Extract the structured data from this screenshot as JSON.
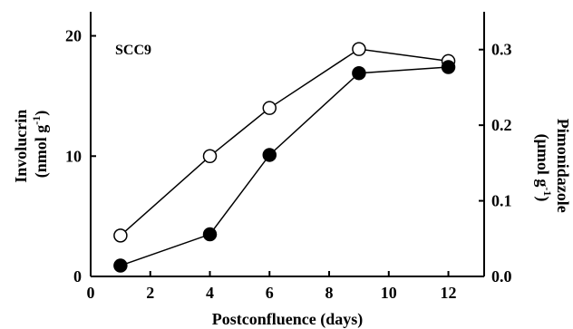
{
  "chart_data": {
    "type": "line",
    "annotation": "SCC9",
    "xlabel": "Postconfluence (days)",
    "ylabel_left": [
      "Involucrin",
      "(nmol g",
      "-1",
      ")"
    ],
    "ylabel_right": [
      "Pimonidazole",
      "(μmol g",
      "-1",
      ")"
    ],
    "xlim": [
      0,
      13.2
    ],
    "ylim_left": [
      0,
      22
    ],
    "ylim_right": [
      0,
      0.35
    ],
    "x_ticks": [
      0,
      2,
      4,
      6,
      8,
      10,
      12
    ],
    "x_tick_labels": [
      "0",
      "2",
      "4",
      "6",
      "8",
      "10",
      "12"
    ],
    "y_left_ticks": [
      0,
      10,
      20
    ],
    "y_left_tick_labels": [
      "0",
      "10",
      "20"
    ],
    "y_right_ticks": [
      0.0,
      0.1,
      0.2,
      0.3
    ],
    "y_right_tick_labels": [
      "0.0",
      "0.1",
      "0.2",
      "0.3"
    ],
    "series": [
      {
        "marker": "open-circle",
        "axis": "left",
        "x": [
          1,
          4,
          6,
          9,
          12
        ],
        "y": [
          3.4,
          10.0,
          14.0,
          18.9,
          17.9
        ]
      },
      {
        "marker": "filled-circle",
        "axis": "left",
        "x": [
          1,
          4,
          6,
          9,
          12
        ],
        "y": [
          0.9,
          3.5,
          10.1,
          16.9,
          17.4
        ]
      }
    ],
    "grid": false
  }
}
